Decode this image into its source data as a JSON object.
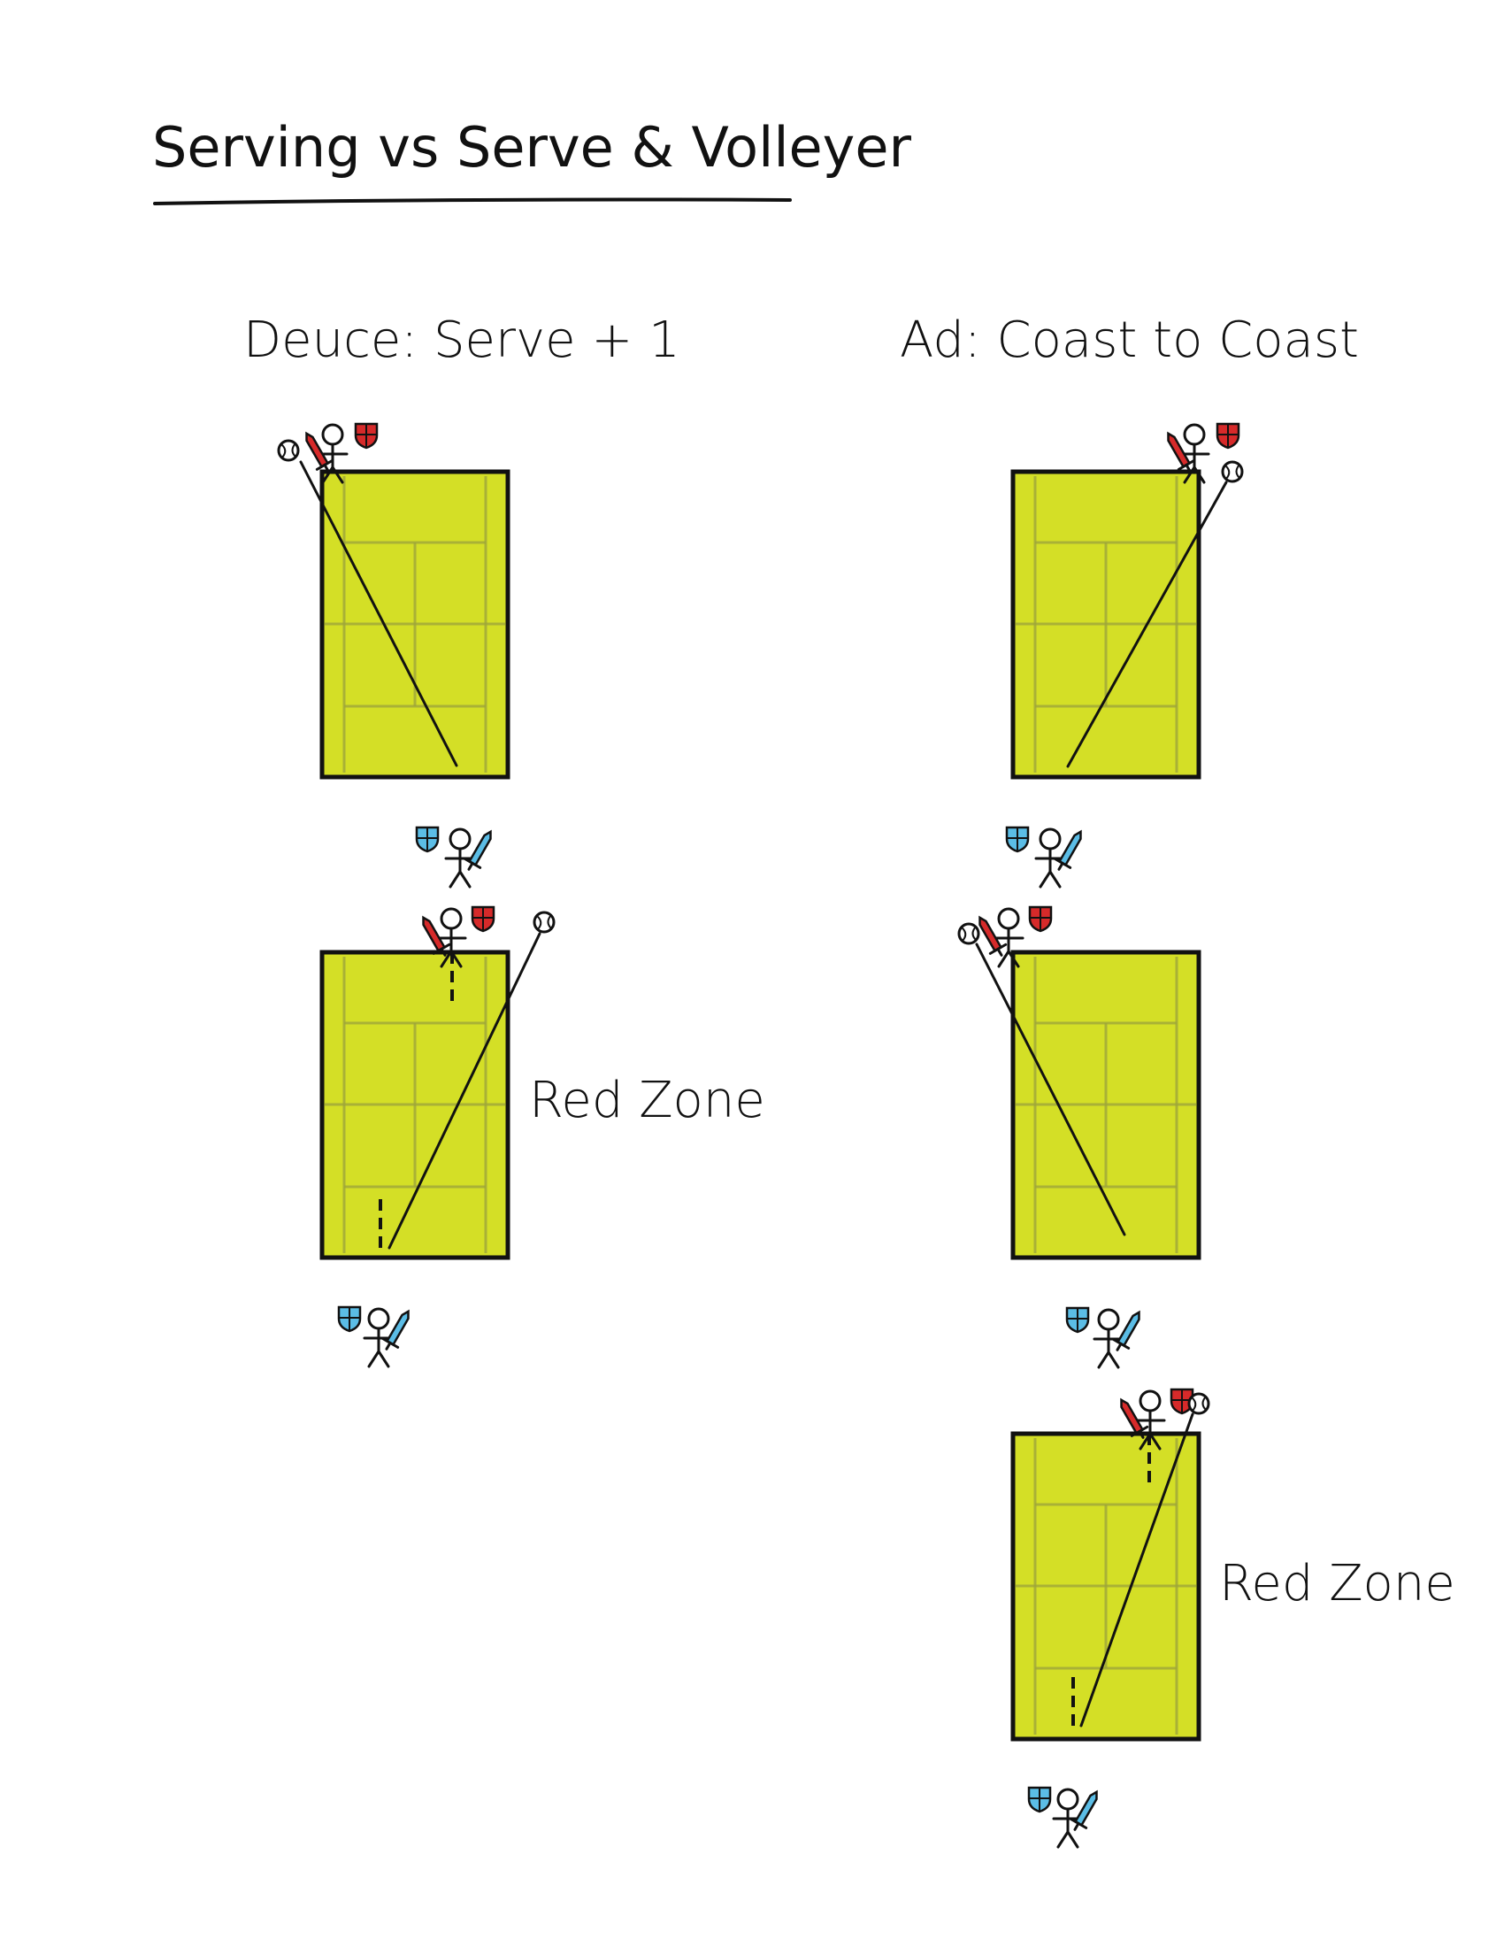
{
  "title": "Serving vs Serve & Volleyer",
  "columns": [
    {
      "heading": "Deuce: Serve + 1"
    },
    {
      "heading": "Ad: Coast to Coast"
    }
  ],
  "zone_label": "Red Zone",
  "colors": {
    "court": "#d4df26",
    "court_lines": "#9fa63a",
    "red_team": "#d62a2a",
    "blue_team": "#5bbde6",
    "ink": "#111111"
  },
  "icons": [
    "stick-figure-icon",
    "sword-icon",
    "shield-icon",
    "tennis-ball-icon"
  ]
}
